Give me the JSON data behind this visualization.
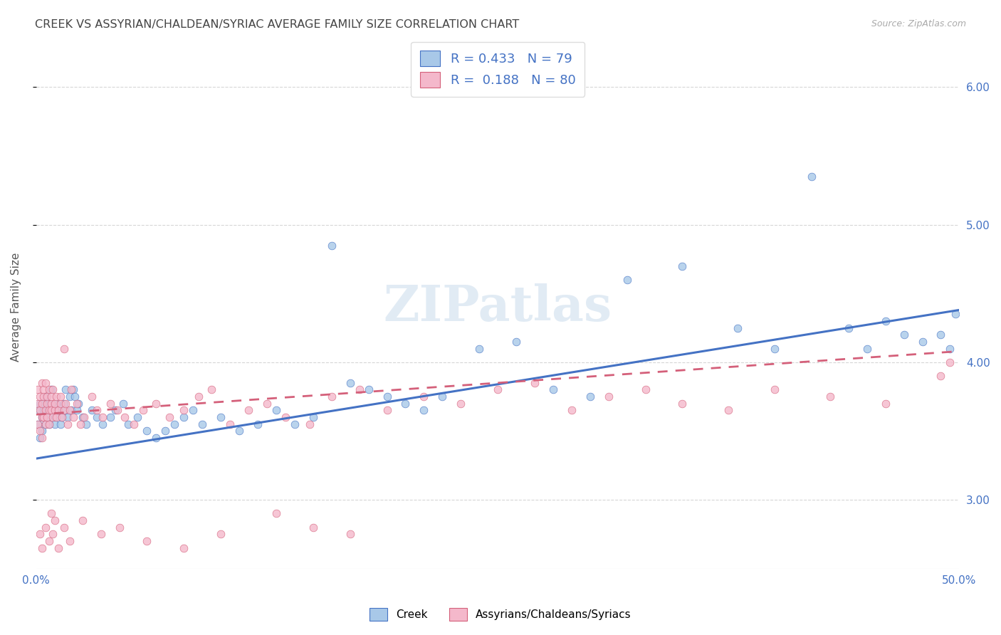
{
  "title": "CREEK VS ASSYRIAN/CHALDEAN/SYRIAC AVERAGE FAMILY SIZE CORRELATION CHART",
  "source": "Source: ZipAtlas.com",
  "ylabel": "Average Family Size",
  "xlim": [
    0.0,
    0.5
  ],
  "ylim": [
    2.5,
    6.3
  ],
  "yticks": [
    3.0,
    4.0,
    5.0,
    6.0
  ],
  "creek_color": "#a8c8e8",
  "creek_color_dark": "#4472c4",
  "assyrian_color": "#f4b8cb",
  "assyrian_color_dark": "#d4607a",
  "creek_R": 0.433,
  "creek_N": 79,
  "assyrian_R": 0.188,
  "assyrian_N": 80,
  "watermark": "ZIPatlas",
  "background_color": "#ffffff",
  "legend_color": "#4472c4",
  "right_axis_color": "#4472c4",
  "creek_line_x": [
    0.0,
    0.5
  ],
  "creek_line_y": [
    3.3,
    4.38
  ],
  "assyrian_line_x": [
    0.0,
    0.5
  ],
  "assyrian_line_y": [
    3.62,
    4.08
  ],
  "creek_scatter_x": [
    0.001,
    0.001,
    0.002,
    0.002,
    0.003,
    0.003,
    0.004,
    0.004,
    0.005,
    0.005,
    0.006,
    0.006,
    0.007,
    0.007,
    0.008,
    0.009,
    0.01,
    0.01,
    0.011,
    0.012,
    0.013,
    0.014,
    0.015,
    0.015,
    0.016,
    0.017,
    0.018,
    0.019,
    0.02,
    0.021,
    0.022,
    0.023,
    0.025,
    0.027,
    0.03,
    0.033,
    0.036,
    0.04,
    0.043,
    0.047,
    0.05,
    0.055,
    0.06,
    0.065,
    0.07,
    0.075,
    0.08,
    0.085,
    0.09,
    0.1,
    0.11,
    0.12,
    0.13,
    0.14,
    0.15,
    0.16,
    0.17,
    0.18,
    0.19,
    0.2,
    0.21,
    0.22,
    0.24,
    0.26,
    0.28,
    0.3,
    0.32,
    0.35,
    0.38,
    0.4,
    0.42,
    0.44,
    0.45,
    0.46,
    0.47,
    0.48,
    0.49,
    0.495,
    0.498
  ],
  "creek_scatter_y": [
    3.55,
    3.65,
    3.7,
    3.45,
    3.6,
    3.5,
    3.65,
    3.7,
    3.55,
    3.75,
    3.65,
    3.6,
    3.7,
    3.55,
    3.8,
    3.65,
    3.6,
    3.55,
    3.7,
    3.65,
    3.55,
    3.6,
    3.7,
    3.65,
    3.8,
    3.6,
    3.75,
    3.65,
    3.8,
    3.75,
    3.65,
    3.7,
    3.6,
    3.55,
    3.65,
    3.6,
    3.55,
    3.6,
    3.65,
    3.7,
    3.55,
    3.6,
    3.5,
    3.45,
    3.5,
    3.55,
    3.6,
    3.65,
    3.55,
    3.6,
    3.5,
    3.55,
    3.65,
    3.55,
    3.6,
    4.85,
    3.85,
    3.8,
    3.75,
    3.7,
    3.65,
    3.75,
    4.1,
    4.15,
    3.8,
    3.75,
    4.6,
    4.7,
    4.25,
    4.1,
    5.35,
    4.25,
    4.1,
    4.3,
    4.2,
    4.15,
    4.2,
    4.1,
    4.35
  ],
  "assyrian_scatter_x": [
    0.001,
    0.001,
    0.001,
    0.002,
    0.002,
    0.002,
    0.003,
    0.003,
    0.003,
    0.003,
    0.004,
    0.004,
    0.004,
    0.005,
    0.005,
    0.005,
    0.006,
    0.006,
    0.006,
    0.007,
    0.007,
    0.007,
    0.008,
    0.008,
    0.008,
    0.009,
    0.009,
    0.01,
    0.01,
    0.011,
    0.011,
    0.012,
    0.013,
    0.013,
    0.014,
    0.015,
    0.015,
    0.016,
    0.017,
    0.018,
    0.019,
    0.02,
    0.022,
    0.024,
    0.026,
    0.03,
    0.033,
    0.036,
    0.04,
    0.044,
    0.048,
    0.053,
    0.058,
    0.065,
    0.072,
    0.08,
    0.088,
    0.095,
    0.105,
    0.115,
    0.125,
    0.135,
    0.148,
    0.16,
    0.175,
    0.19,
    0.21,
    0.23,
    0.25,
    0.27,
    0.29,
    0.31,
    0.33,
    0.35,
    0.375,
    0.4,
    0.43,
    0.46,
    0.49,
    0.495
  ],
  "assyrian_scatter_y": [
    3.7,
    3.55,
    3.8,
    3.65,
    3.75,
    3.5,
    3.85,
    3.6,
    3.7,
    3.45,
    3.75,
    3.8,
    3.6,
    3.65,
    3.55,
    3.85,
    3.7,
    3.6,
    3.75,
    3.65,
    3.8,
    3.55,
    3.7,
    3.65,
    3.75,
    3.6,
    3.8,
    3.65,
    3.7,
    3.75,
    3.6,
    3.65,
    3.7,
    3.75,
    3.6,
    3.65,
    4.1,
    3.7,
    3.55,
    3.65,
    3.8,
    3.6,
    3.7,
    3.55,
    3.6,
    3.75,
    3.65,
    3.6,
    3.7,
    3.65,
    3.6,
    3.55,
    3.65,
    3.7,
    3.6,
    3.65,
    3.75,
    3.8,
    3.55,
    3.65,
    3.7,
    3.6,
    3.55,
    3.75,
    3.8,
    3.65,
    3.75,
    3.7,
    3.8,
    3.85,
    3.65,
    3.75,
    3.8,
    3.7,
    3.65,
    3.8,
    3.75,
    3.7,
    3.9,
    4.0
  ],
  "assyrian_low_x": [
    0.002,
    0.003,
    0.005,
    0.007,
    0.008,
    0.009,
    0.01,
    0.012,
    0.015,
    0.018,
    0.025,
    0.035,
    0.045,
    0.06,
    0.08,
    0.1,
    0.13,
    0.15,
    0.17
  ],
  "assyrian_low_y": [
    2.75,
    2.65,
    2.8,
    2.7,
    2.9,
    2.75,
    2.85,
    2.65,
    2.8,
    2.7,
    2.85,
    2.75,
    2.8,
    2.7,
    2.65,
    2.75,
    2.9,
    2.8,
    2.75
  ]
}
